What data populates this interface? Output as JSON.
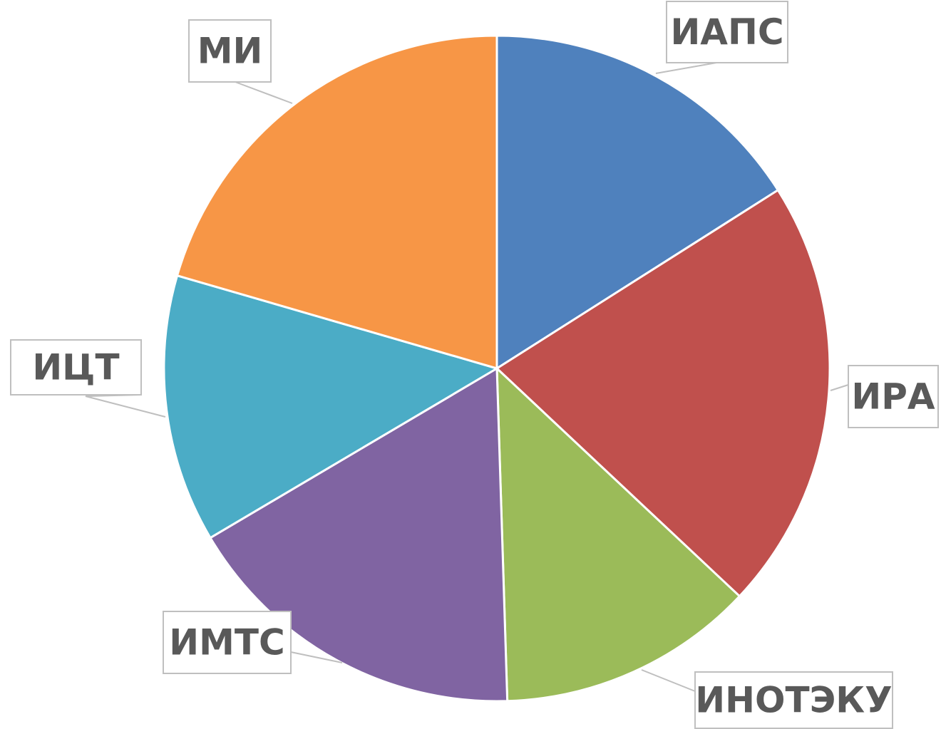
{
  "chart_data": {
    "type": "pie",
    "categories": [
      "ИАПС",
      "ИРА",
      "ИНОТЭКУ",
      "ИМТС",
      "ИЦТ",
      "МИ"
    ],
    "values": [
      16,
      21,
      12.5,
      17,
      13,
      20.5
    ],
    "colors": [
      "#4f81bd",
      "#c0504d",
      "#9bbb59",
      "#8064a2",
      "#4bacc6",
      "#f79646"
    ]
  }
}
